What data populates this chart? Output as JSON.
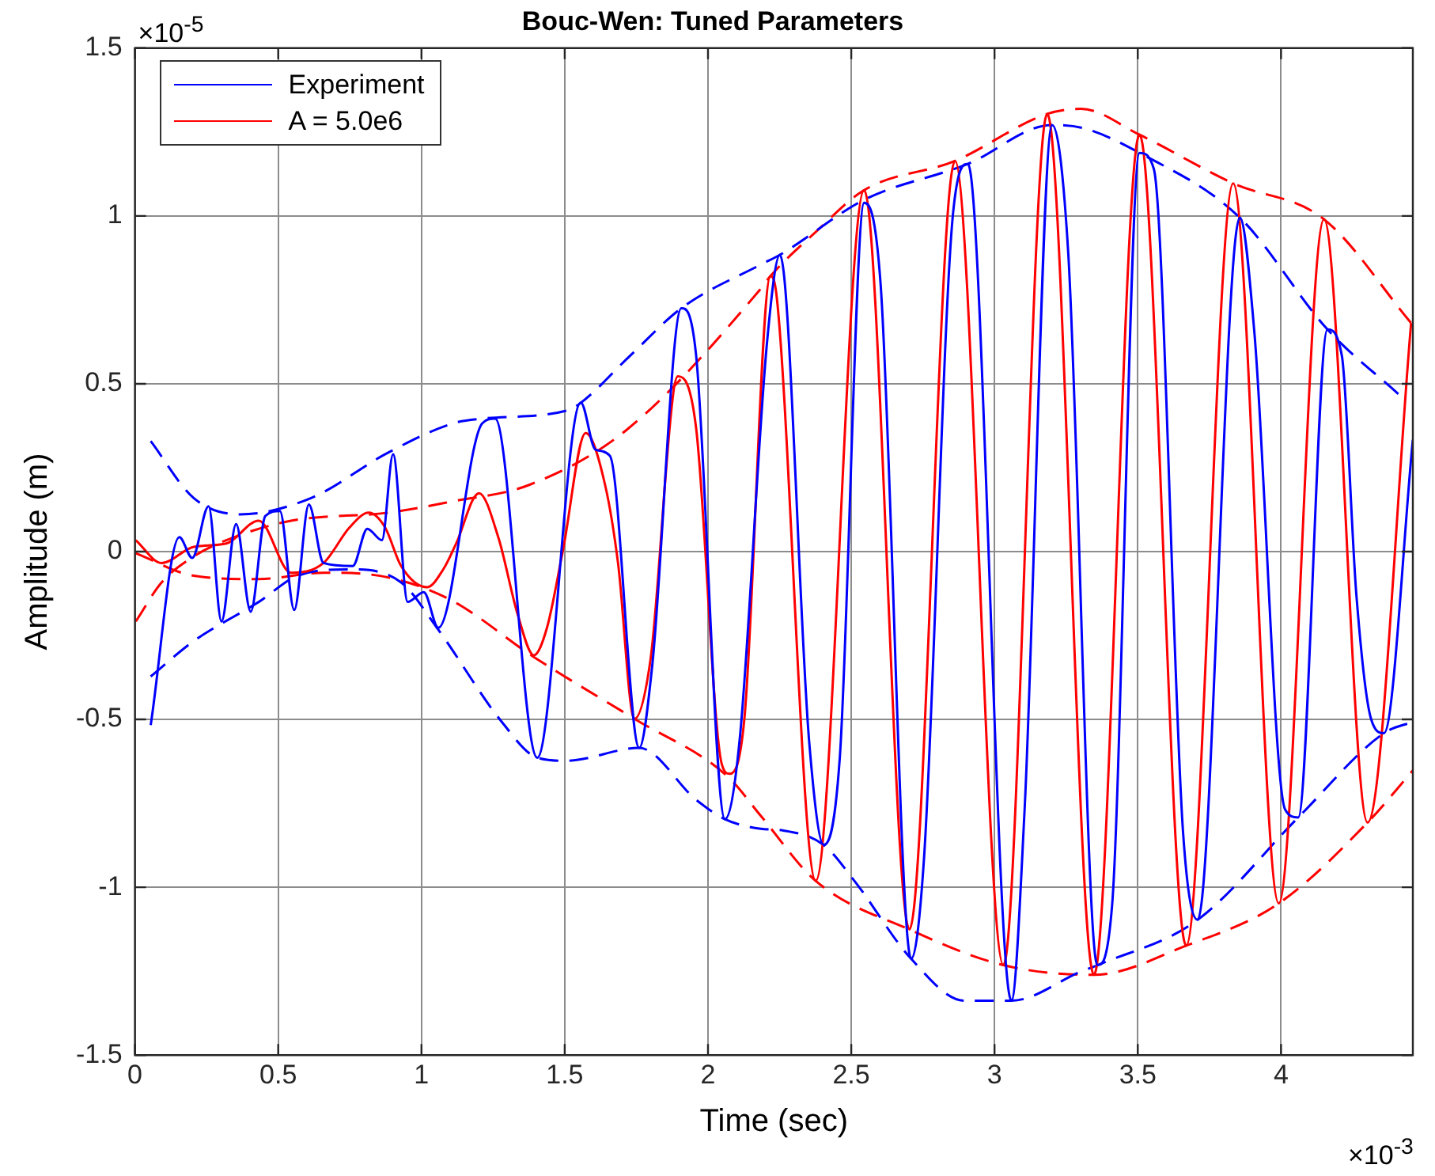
{
  "chart_data": {
    "type": "line",
    "title": "Bouc-Wen: Tuned Parameters",
    "xlabel": "Time (sec)",
    "ylabel": "Amplitude (m)",
    "annotations": [
      "×10$^{-5}$",
      "×10$^{-3}$"
    ],
    "xlim": [
      0,
      4.46
    ],
    "ylim": [
      -1.5,
      1.5
    ],
    "xticks": [
      0,
      0.5,
      1,
      1.5,
      2,
      2.5,
      3,
      3.5,
      4
    ],
    "yticks": [
      -1.5,
      -1,
      -0.5,
      0,
      0.5,
      1,
      1.5
    ],
    "grid": true,
    "legend": "top left",
    "marker": "none",
    "series": [
      {
        "name": "Experiment",
        "color": "#0000ff",
        "x": [
          0.055,
          0.155,
          0.2,
          0.257,
          0.302,
          0.353,
          0.404,
          0.455,
          0.506,
          0.556,
          0.607,
          0.658,
          0.76,
          0.811,
          0.862,
          0.901,
          0.952,
          1.008,
          1.059,
          1.212,
          1.257,
          1.404,
          1.556,
          1.607,
          1.658,
          1.76,
          1.805,
          1.907,
          1.958,
          2.059,
          2.11,
          2.206,
          2.251,
          2.353,
          2.404,
          2.46,
          2.545,
          2.602,
          2.709,
          2.754,
          2.856,
          2.907,
          3.059,
          3.105,
          3.201,
          3.257,
          3.359,
          3.41,
          3.506,
          3.556,
          3.658,
          3.709,
          3.856,
          3.907,
          4.014,
          4.06,
          4.162,
          4.212,
          4.263,
          4.314,
          4.359,
          4.46
        ],
        "values": [
          -0.517,
          0.043,
          -0.019,
          0.135,
          -0.208,
          0.082,
          -0.179,
          0.106,
          0.121,
          -0.174,
          0.14,
          -0.034,
          -0.043,
          0.068,
          0.034,
          0.29,
          -0.15,
          -0.121,
          -0.227,
          0.382,
          0.396,
          -0.614,
          0.444,
          0.304,
          0.285,
          -0.585,
          -0.343,
          0.725,
          0.589,
          -0.797,
          -0.565,
          0.623,
          0.884,
          -0.565,
          -0.874,
          -0.614,
          1.039,
          0.802,
          -1.213,
          -0.913,
          1.014,
          1.155,
          -1.338,
          -0.768,
          1.271,
          0.894,
          -1.232,
          -1.058,
          1.188,
          1.14,
          -0.836,
          -1.097,
          0.995,
          0.652,
          -0.768,
          -0.792,
          0.662,
          0.585,
          -0.13,
          -0.498,
          -0.541,
          0.333
        ]
      },
      {
        "name": "A = 5.0e6",
        "color": "#ff0000",
        "x": [
          0.003,
          0.093,
          0.206,
          0.319,
          0.432,
          0.545,
          0.658,
          0.749,
          0.816,
          0.873,
          0.929,
          1.02,
          1.076,
          1.121,
          1.201,
          1.268,
          1.336,
          1.392,
          1.438,
          1.494,
          1.573,
          1.641,
          1.686,
          1.743,
          1.799,
          1.895,
          1.958,
          2.048,
          2.076,
          2.127,
          2.218,
          2.24,
          2.376,
          2.545,
          2.703,
          2.862,
          3.031,
          3.184,
          3.347,
          3.506,
          3.669,
          3.833,
          3.992,
          4.15,
          4.302,
          4.454
        ],
        "values": [
          0.034,
          -0.034,
          0.014,
          0.024,
          0.092,
          -0.063,
          -0.034,
          0.072,
          0.116,
          0.072,
          -0.043,
          -0.106,
          -0.053,
          0.024,
          0.174,
          0.043,
          -0.188,
          -0.309,
          -0.227,
          0.005,
          0.353,
          0.198,
          -0.034,
          -0.498,
          -0.324,
          0.522,
          0.372,
          -0.633,
          -0.662,
          -0.498,
          0.821,
          0.758,
          -0.981,
          1.077,
          -1.126,
          1.164,
          -1.232,
          1.304,
          -1.261,
          1.242,
          -1.174,
          1.097,
          -1.048,
          0.99,
          -0.807,
          0.681
        ]
      },
      {
        "color": "#0000ff",
        "line_style": "dashed",
        "x": [
          0.055,
          0.206,
          0.367,
          0.613,
          0.884,
          1.11,
          1.212,
          1.506,
          1.551,
          1.73,
          1.907,
          2.184,
          2.251,
          2.545,
          2.907,
          3.201,
          3.313,
          3.506,
          3.856,
          4.162,
          4.41
        ],
        "values": [
          0.329,
          0.159,
          0.111,
          0.159,
          0.295,
          0.382,
          0.396,
          0.42,
          0.44,
          0.585,
          0.725,
          0.855,
          0.884,
          1.048,
          1.155,
          1.271,
          1.261,
          1.188,
          0.995,
          0.662,
          0.469
        ]
      },
      {
        "color": "#0000ff",
        "line_style": "dashed",
        "x": [
          0.055,
          0.206,
          0.432,
          0.568,
          0.749,
          0.929,
          1.054,
          1.28,
          1.404,
          1.506,
          1.76,
          1.958,
          2.059,
          2.184,
          2.263,
          2.404,
          2.511,
          2.709,
          2.895,
          3.059,
          3.302,
          3.359,
          3.709,
          4.06,
          4.359,
          4.46
        ],
        "values": [
          -0.372,
          -0.266,
          -0.15,
          -0.072,
          -0.053,
          -0.092,
          -0.227,
          -0.507,
          -0.614,
          -0.623,
          -0.585,
          -0.739,
          -0.797,
          -0.826,
          -0.831,
          -0.874,
          -0.981,
          -1.213,
          -1.338,
          -1.338,
          -1.251,
          -1.232,
          -1.097,
          -0.792,
          -0.541,
          -0.507
        ]
      },
      {
        "color": "#ff0000",
        "line_style": "dashed",
        "x": [
          0.003,
          0.093,
          0.206,
          0.319,
          0.545,
          0.884,
          1.11,
          1.374,
          1.715,
          2.184,
          2.218,
          2.376,
          2.545,
          2.862,
          3.184,
          3.302,
          3.506,
          3.833,
          4.15,
          4.454
        ],
        "values": [
          -0.208,
          -0.092,
          -0.014,
          0.034,
          0.092,
          0.116,
          0.15,
          0.198,
          0.362,
          0.783,
          0.821,
          0.952,
          1.077,
          1.164,
          1.304,
          1.319,
          1.242,
          1.097,
          0.99,
          0.681
        ]
      },
      {
        "color": "#ff0000",
        "line_style": "dashed",
        "x": [
          0.003,
          0.206,
          0.432,
          0.658,
          0.884,
          1.104,
          1.392,
          1.743,
          2.07,
          2.184,
          2.376,
          2.703,
          3.031,
          3.347,
          3.669,
          3.992,
          4.302,
          4.46
        ],
        "values": [
          -0.005,
          -0.072,
          -0.082,
          -0.063,
          -0.077,
          -0.145,
          -0.314,
          -0.498,
          -0.671,
          -0.787,
          -0.981,
          -1.126,
          -1.232,
          -1.261,
          -1.174,
          -1.048,
          -0.807,
          -0.652
        ]
      }
    ]
  }
}
